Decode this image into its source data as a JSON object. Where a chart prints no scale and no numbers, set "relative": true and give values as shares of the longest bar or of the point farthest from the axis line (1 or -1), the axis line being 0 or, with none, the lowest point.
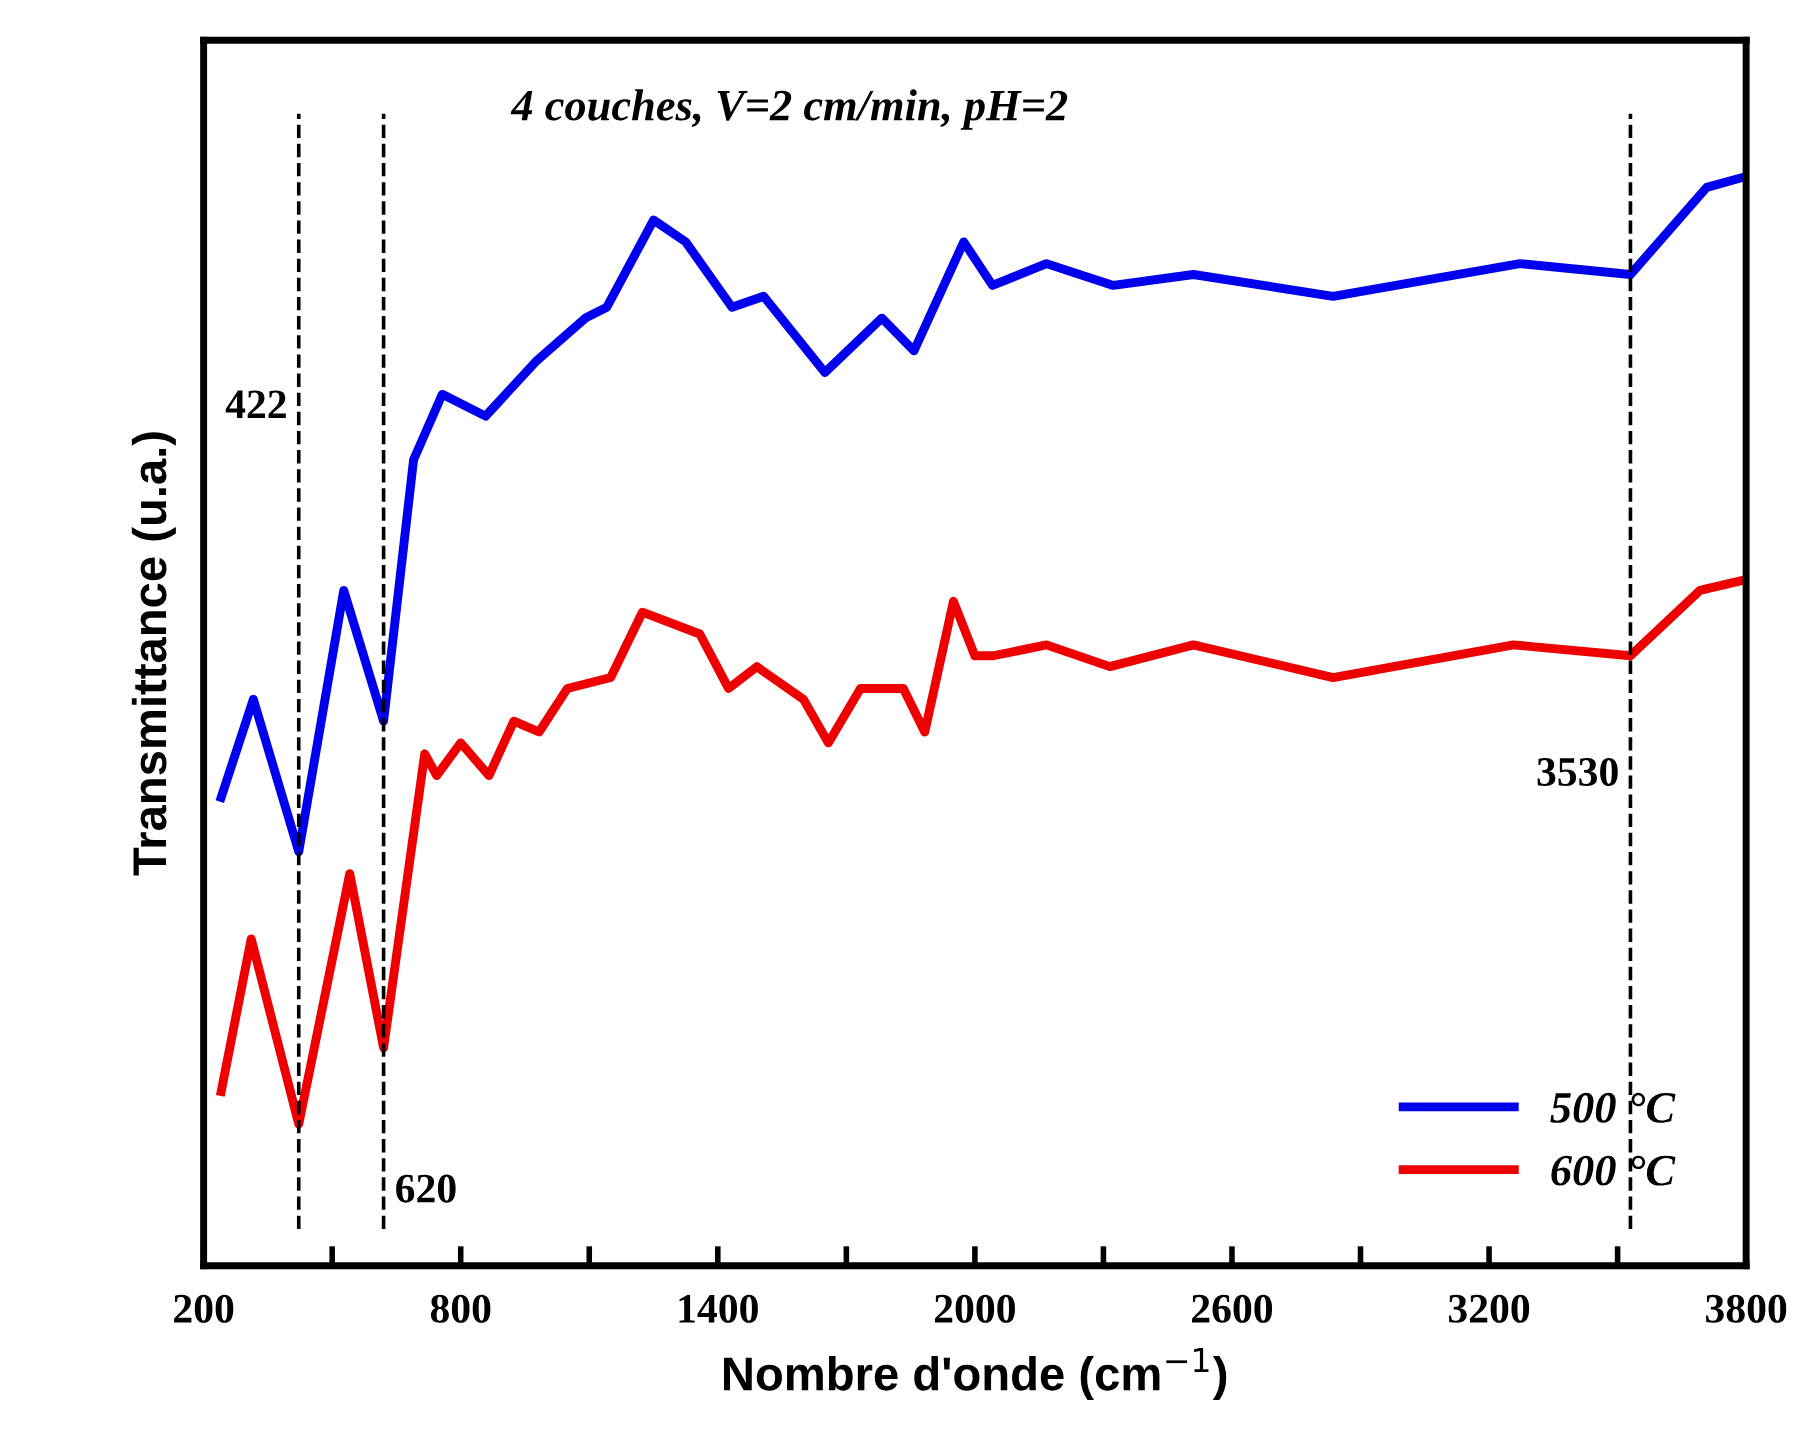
{
  "chart_data": {
    "type": "line",
    "relative": true,
    "title": "4 couches, V=2 cm/min, pH=2",
    "xlabel": "Nombre d'onde (cm$^{−1}$)",
    "ylabel": "Transmittance (u.a.)",
    "xlim": [
      200,
      3800
    ],
    "xticks": [
      200,
      {
        "value": 500,
        "label": null
      },
      800,
      {
        "value": 1100,
        "label": null
      },
      1400,
      {
        "value": 1700,
        "label": null
      },
      2000,
      {
        "value": 2300,
        "label": null
      },
      2600,
      {
        "value": 2900,
        "label": null
      },
      3200,
      {
        "value": 3500,
        "label": null
      },
      3800
    ],
    "legend": "bottom right",
    "grid": false,
    "marker": "none",
    "line_style": "solid",
    "series": [
      {
        "name": "500 °C",
        "color": "#0000ee",
        "x": [
          241,
          316,
          422,
          527,
          620,
          690,
          757,
          858,
          975,
          1091,
          1141,
          1250,
          1325,
          1433,
          1507,
          1650,
          1783,
          1858,
          1974,
          2041,
          2167,
          2323,
          2510,
          2836,
          3272,
          3530,
          3708,
          3800
        ],
        "values": [
          0.43,
          0.52,
          0.38,
          0.62,
          0.5,
          0.74,
          0.8,
          0.78,
          0.83,
          0.87,
          0.88,
          0.96,
          0.94,
          0.88,
          0.89,
          0.82,
          0.87,
          0.84,
          0.94,
          0.9,
          0.92,
          0.9,
          0.91,
          0.89,
          0.92,
          0.91,
          0.99,
          1.0
        ]
      },
      {
        "name": "600 °C",
        "color": "#ee0000",
        "x": [
          241,
          311,
          422,
          541,
          620,
          716,
          744,
          800,
          866,
          924,
          983,
          1049,
          1150,
          1224,
          1358,
          1425,
          1491,
          1600,
          1658,
          1733,
          1833,
          1883,
          1950,
          2000,
          2043,
          2167,
          2315,
          2510,
          2836,
          3257,
          3530,
          3692,
          3800
        ],
        "values": [
          0.16,
          0.3,
          0.13,
          0.36,
          0.2,
          0.47,
          0.45,
          0.48,
          0.45,
          0.5,
          0.49,
          0.53,
          0.54,
          0.6,
          0.58,
          0.53,
          0.55,
          0.52,
          0.48,
          0.53,
          0.53,
          0.49,
          0.61,
          0.56,
          0.56,
          0.57,
          0.55,
          0.57,
          0.54,
          0.57,
          0.56,
          0.62,
          0.63
        ]
      }
    ],
    "ref_lines": [
      {
        "axis": "x",
        "value": 422,
        "label": "422",
        "line_style": "dashed",
        "color": "#000000"
      },
      {
        "axis": "x",
        "value": 620,
        "label": "620",
        "line_style": "dashed",
        "color": "#000000"
      },
      {
        "axis": "x",
        "value": 3530,
        "label": "3530",
        "line_style": "dashed",
        "color": "#000000"
      }
    ]
  }
}
